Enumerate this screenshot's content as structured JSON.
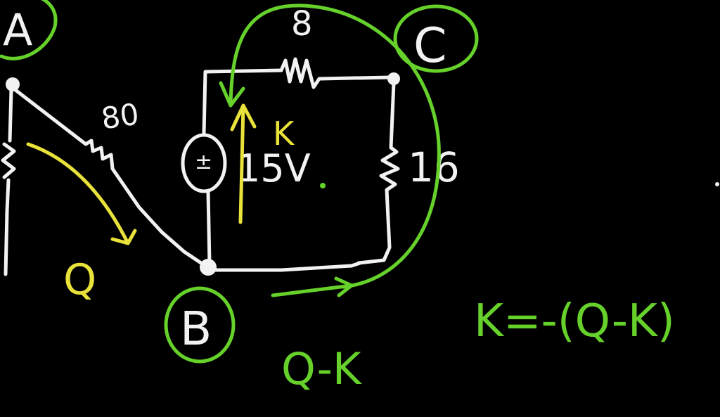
{
  "colors": {
    "background": "#000000",
    "wire": "#f2f2f2",
    "green_annotation": "#66d12a",
    "yellow_annotation": "#e9e23a"
  },
  "nodes": {
    "a": "A",
    "b": "B",
    "c": "C"
  },
  "resistors": {
    "r80": "80",
    "r8": "8",
    "r16": "16"
  },
  "source": {
    "symbol": "±",
    "voltage": "15V"
  },
  "currents": {
    "q": "Q",
    "k": "K",
    "q_minus_k": "Q-K"
  },
  "equation": "K=-(Q-K)"
}
